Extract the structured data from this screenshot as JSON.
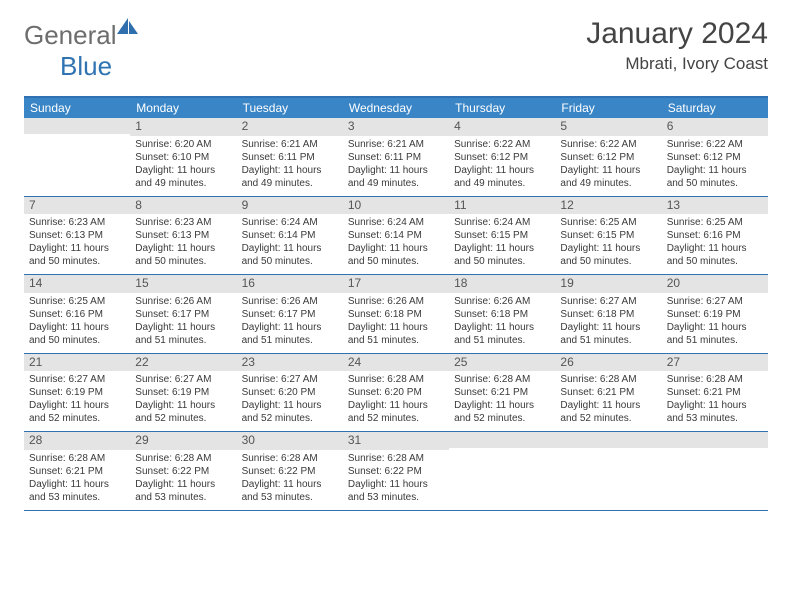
{
  "logo": {
    "word1": "General",
    "word2": "Blue"
  },
  "title": "January 2024",
  "location": "Mbrati, Ivory Coast",
  "colors": {
    "header_bg": "#3a85c6",
    "border": "#2f71b2",
    "daynum_bg": "#e4e4e4",
    "text": "#3a3a3a",
    "logo_gray": "#6d6d6d",
    "logo_blue": "#3073b3"
  },
  "day_names": [
    "Sunday",
    "Monday",
    "Tuesday",
    "Wednesday",
    "Thursday",
    "Friday",
    "Saturday"
  ],
  "weeks": [
    [
      {
        "n": "",
        "sr": "",
        "ss": "",
        "dl": ""
      },
      {
        "n": "1",
        "sr": "Sunrise: 6:20 AM",
        "ss": "Sunset: 6:10 PM",
        "dl": "Daylight: 11 hours and 49 minutes."
      },
      {
        "n": "2",
        "sr": "Sunrise: 6:21 AM",
        "ss": "Sunset: 6:11 PM",
        "dl": "Daylight: 11 hours and 49 minutes."
      },
      {
        "n": "3",
        "sr": "Sunrise: 6:21 AM",
        "ss": "Sunset: 6:11 PM",
        "dl": "Daylight: 11 hours and 49 minutes."
      },
      {
        "n": "4",
        "sr": "Sunrise: 6:22 AM",
        "ss": "Sunset: 6:12 PM",
        "dl": "Daylight: 11 hours and 49 minutes."
      },
      {
        "n": "5",
        "sr": "Sunrise: 6:22 AM",
        "ss": "Sunset: 6:12 PM",
        "dl": "Daylight: 11 hours and 49 minutes."
      },
      {
        "n": "6",
        "sr": "Sunrise: 6:22 AM",
        "ss": "Sunset: 6:12 PM",
        "dl": "Daylight: 11 hours and 50 minutes."
      }
    ],
    [
      {
        "n": "7",
        "sr": "Sunrise: 6:23 AM",
        "ss": "Sunset: 6:13 PM",
        "dl": "Daylight: 11 hours and 50 minutes."
      },
      {
        "n": "8",
        "sr": "Sunrise: 6:23 AM",
        "ss": "Sunset: 6:13 PM",
        "dl": "Daylight: 11 hours and 50 minutes."
      },
      {
        "n": "9",
        "sr": "Sunrise: 6:24 AM",
        "ss": "Sunset: 6:14 PM",
        "dl": "Daylight: 11 hours and 50 minutes."
      },
      {
        "n": "10",
        "sr": "Sunrise: 6:24 AM",
        "ss": "Sunset: 6:14 PM",
        "dl": "Daylight: 11 hours and 50 minutes."
      },
      {
        "n": "11",
        "sr": "Sunrise: 6:24 AM",
        "ss": "Sunset: 6:15 PM",
        "dl": "Daylight: 11 hours and 50 minutes."
      },
      {
        "n": "12",
        "sr": "Sunrise: 6:25 AM",
        "ss": "Sunset: 6:15 PM",
        "dl": "Daylight: 11 hours and 50 minutes."
      },
      {
        "n": "13",
        "sr": "Sunrise: 6:25 AM",
        "ss": "Sunset: 6:16 PM",
        "dl": "Daylight: 11 hours and 50 minutes."
      }
    ],
    [
      {
        "n": "14",
        "sr": "Sunrise: 6:25 AM",
        "ss": "Sunset: 6:16 PM",
        "dl": "Daylight: 11 hours and 50 minutes."
      },
      {
        "n": "15",
        "sr": "Sunrise: 6:26 AM",
        "ss": "Sunset: 6:17 PM",
        "dl": "Daylight: 11 hours and 51 minutes."
      },
      {
        "n": "16",
        "sr": "Sunrise: 6:26 AM",
        "ss": "Sunset: 6:17 PM",
        "dl": "Daylight: 11 hours and 51 minutes."
      },
      {
        "n": "17",
        "sr": "Sunrise: 6:26 AM",
        "ss": "Sunset: 6:18 PM",
        "dl": "Daylight: 11 hours and 51 minutes."
      },
      {
        "n": "18",
        "sr": "Sunrise: 6:26 AM",
        "ss": "Sunset: 6:18 PM",
        "dl": "Daylight: 11 hours and 51 minutes."
      },
      {
        "n": "19",
        "sr": "Sunrise: 6:27 AM",
        "ss": "Sunset: 6:18 PM",
        "dl": "Daylight: 11 hours and 51 minutes."
      },
      {
        "n": "20",
        "sr": "Sunrise: 6:27 AM",
        "ss": "Sunset: 6:19 PM",
        "dl": "Daylight: 11 hours and 51 minutes."
      }
    ],
    [
      {
        "n": "21",
        "sr": "Sunrise: 6:27 AM",
        "ss": "Sunset: 6:19 PM",
        "dl": "Daylight: 11 hours and 52 minutes."
      },
      {
        "n": "22",
        "sr": "Sunrise: 6:27 AM",
        "ss": "Sunset: 6:19 PM",
        "dl": "Daylight: 11 hours and 52 minutes."
      },
      {
        "n": "23",
        "sr": "Sunrise: 6:27 AM",
        "ss": "Sunset: 6:20 PM",
        "dl": "Daylight: 11 hours and 52 minutes."
      },
      {
        "n": "24",
        "sr": "Sunrise: 6:28 AM",
        "ss": "Sunset: 6:20 PM",
        "dl": "Daylight: 11 hours and 52 minutes."
      },
      {
        "n": "25",
        "sr": "Sunrise: 6:28 AM",
        "ss": "Sunset: 6:21 PM",
        "dl": "Daylight: 11 hours and 52 minutes."
      },
      {
        "n": "26",
        "sr": "Sunrise: 6:28 AM",
        "ss": "Sunset: 6:21 PM",
        "dl": "Daylight: 11 hours and 52 minutes."
      },
      {
        "n": "27",
        "sr": "Sunrise: 6:28 AM",
        "ss": "Sunset: 6:21 PM",
        "dl": "Daylight: 11 hours and 53 minutes."
      }
    ],
    [
      {
        "n": "28",
        "sr": "Sunrise: 6:28 AM",
        "ss": "Sunset: 6:21 PM",
        "dl": "Daylight: 11 hours and 53 minutes."
      },
      {
        "n": "29",
        "sr": "Sunrise: 6:28 AM",
        "ss": "Sunset: 6:22 PM",
        "dl": "Daylight: 11 hours and 53 minutes."
      },
      {
        "n": "30",
        "sr": "Sunrise: 6:28 AM",
        "ss": "Sunset: 6:22 PM",
        "dl": "Daylight: 11 hours and 53 minutes."
      },
      {
        "n": "31",
        "sr": "Sunrise: 6:28 AM",
        "ss": "Sunset: 6:22 PM",
        "dl": "Daylight: 11 hours and 53 minutes."
      },
      {
        "n": "",
        "sr": "",
        "ss": "",
        "dl": ""
      },
      {
        "n": "",
        "sr": "",
        "ss": "",
        "dl": ""
      },
      {
        "n": "",
        "sr": "",
        "ss": "",
        "dl": ""
      }
    ]
  ]
}
